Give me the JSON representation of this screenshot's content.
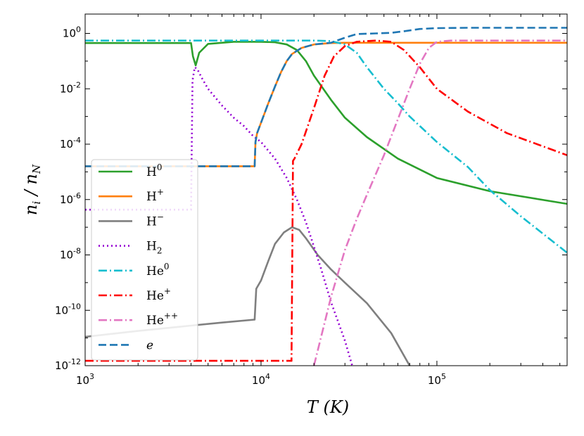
{
  "chart_data": {
    "type": "line",
    "title": "",
    "xlabel": "T (K)",
    "ylabel": "n_i / n_N",
    "xscale": "log",
    "yscale": "log",
    "xlim": [
      1000,
      550000
    ],
    "ylim": [
      1e-12,
      5
    ],
    "grid": false,
    "legend_position": "lower-left",
    "x_ticks": [
      {
        "value": 1000,
        "base": "10",
        "exp": "3"
      },
      {
        "value": 10000,
        "base": "10",
        "exp": "4"
      },
      {
        "value": 100000,
        "base": "10",
        "exp": "5"
      }
    ],
    "y_ticks": [
      {
        "value": 1,
        "base": "10",
        "exp": "0"
      },
      {
        "value": 0.01,
        "base": "10",
        "exp": "-2"
      },
      {
        "value": 0.0001,
        "base": "10",
        "exp": "-4"
      },
      {
        "value": 1e-06,
        "base": "10",
        "exp": "-6"
      },
      {
        "value": 1e-08,
        "base": "10",
        "exp": "-8"
      },
      {
        "value": 1e-10,
        "base": "10",
        "exp": "-10"
      },
      {
        "value": 1e-12,
        "base": "10",
        "exp": "-12"
      }
    ],
    "series": [
      {
        "id": "H0",
        "legend_base": "H",
        "legend_sup": "0",
        "color": "#2ca02c",
        "dash": "solid",
        "points": [
          [
            1000,
            0.45
          ],
          [
            4000,
            0.45
          ],
          [
            4100,
            0.15
          ],
          [
            4250,
            0.07
          ],
          [
            4450,
            0.2
          ],
          [
            5000,
            0.42
          ],
          [
            7000,
            0.5
          ],
          [
            10000,
            0.5
          ],
          [
            12000,
            0.48
          ],
          [
            14000,
            0.4
          ],
          [
            16000,
            0.25
          ],
          [
            18000,
            0.1
          ],
          [
            20000,
            0.03
          ],
          [
            25000,
            0.004
          ],
          [
            30000,
            0.0009
          ],
          [
            40000,
            0.00018
          ],
          [
            60000,
            3e-05
          ],
          [
            100000,
            6e-06
          ],
          [
            200000,
            2e-06
          ],
          [
            550000,
            7e-07
          ]
        ]
      },
      {
        "id": "Hplus",
        "legend_base": "H",
        "legend_sup": "+",
        "color": "#ff7f0e",
        "dash": "solid",
        "points": [
          [
            1000,
            1.6e-05
          ],
          [
            9200,
            1.6e-05
          ],
          [
            9300,
            0.00012
          ],
          [
            9500,
            0.00025
          ],
          [
            10000,
            0.0006
          ],
          [
            11000,
            0.003
          ],
          [
            12000,
            0.012
          ],
          [
            13000,
            0.04
          ],
          [
            14000,
            0.1
          ],
          [
            15000,
            0.18
          ],
          [
            17000,
            0.3
          ],
          [
            20000,
            0.4
          ],
          [
            25000,
            0.45
          ],
          [
            30000,
            0.46
          ],
          [
            550000,
            0.46
          ]
        ]
      },
      {
        "id": "Hminus",
        "legend_base": "H",
        "legend_sup": "−",
        "color": "#7f7f7f",
        "dash": "solid",
        "points": [
          [
            1000,
            1.1e-11
          ],
          [
            2000,
            1.8e-11
          ],
          [
            4000,
            2.8e-11
          ],
          [
            6000,
            3.6e-11
          ],
          [
            9200,
            4.6e-11
          ],
          [
            9400,
            6e-10
          ],
          [
            10000,
            1.2e-09
          ],
          [
            11000,
            6e-09
          ],
          [
            12000,
            2.5e-08
          ],
          [
            13500,
            6.5e-08
          ],
          [
            15000,
            1e-07
          ],
          [
            16500,
            8e-08
          ],
          [
            18000,
            4e-08
          ],
          [
            21000,
            1e-08
          ],
          [
            25000,
            3e-09
          ],
          [
            30000,
            1e-09
          ],
          [
            40000,
            1.8e-10
          ],
          [
            55000,
            1.5e-11
          ],
          [
            70000,
            1e-12
          ]
        ]
      },
      {
        "id": "H2",
        "legend_base": "H",
        "legend_sub": "2",
        "color": "#9400d3",
        "dash": "dotted",
        "points": [
          [
            1000,
            4.3e-07
          ],
          [
            4000,
            4.3e-07
          ],
          [
            4080,
            0.02
          ],
          [
            4200,
            0.06
          ],
          [
            4350,
            0.05
          ],
          [
            4600,
            0.025
          ],
          [
            5000,
            0.01
          ],
          [
            6000,
            0.0025
          ],
          [
            7000,
            0.0009
          ],
          [
            8000,
            0.00045
          ],
          [
            9000,
            0.0002
          ],
          [
            10000,
            0.00012
          ],
          [
            12000,
            3e-05
          ],
          [
            14000,
            6e-06
          ],
          [
            16000,
            1e-06
          ],
          [
            18000,
            1.5e-07
          ],
          [
            20000,
            2e-08
          ],
          [
            22000,
            3e-09
          ],
          [
            25000,
            2e-10
          ],
          [
            30000,
            8e-12
          ],
          [
            33000,
            1e-12
          ]
        ]
      },
      {
        "id": "He0",
        "legend_base": "He",
        "legend_sup": "0",
        "color": "#17becf",
        "dash": "dashdot",
        "points": [
          [
            1000,
            0.55
          ],
          [
            20000,
            0.55
          ],
          [
            25000,
            0.53
          ],
          [
            30000,
            0.4
          ],
          [
            35000,
            0.2
          ],
          [
            40000,
            0.06
          ],
          [
            50000,
            0.01
          ],
          [
            60000,
            0.003
          ],
          [
            70000,
            0.001
          ],
          [
            100000,
            0.00012
          ],
          [
            150000,
            1.5e-05
          ],
          [
            200000,
            2.2e-06
          ],
          [
            300000,
            2.5e-07
          ],
          [
            550000,
            1.2e-08
          ]
        ]
      },
      {
        "id": "Heplus",
        "legend_base": "He",
        "legend_sup": "+",
        "color": "#ff0000",
        "dash": "dashdot",
        "points": [
          [
            1000,
            1.5e-12
          ],
          [
            14900,
            1.5e-12
          ],
          [
            15200,
            2.5e-05
          ],
          [
            15500,
            3e-05
          ],
          [
            17000,
            0.0001
          ],
          [
            20000,
            0.002
          ],
          [
            23000,
            0.03
          ],
          [
            26000,
            0.15
          ],
          [
            30000,
            0.35
          ],
          [
            35000,
            0.5
          ],
          [
            45000,
            0.55
          ],
          [
            55000,
            0.5
          ],
          [
            65000,
            0.25
          ],
          [
            80000,
            0.06
          ],
          [
            100000,
            0.01
          ],
          [
            150000,
            0.0015
          ],
          [
            250000,
            0.00025
          ],
          [
            550000,
            4e-05
          ]
        ]
      },
      {
        "id": "Heplusplus",
        "legend_base": "He",
        "legend_sup": "++",
        "color": "#e377c2",
        "dash": "dashdot",
        "points": [
          [
            20000,
            1e-12
          ],
          [
            25000,
            3e-10
          ],
          [
            30000,
            1.5e-08
          ],
          [
            35000,
            2e-07
          ],
          [
            40000,
            1.5e-06
          ],
          [
            50000,
            4e-05
          ],
          [
            60000,
            0.0008
          ],
          [
            70000,
            0.01
          ],
          [
            80000,
            0.08
          ],
          [
            90000,
            0.3
          ],
          [
            100000,
            0.5
          ],
          [
            120000,
            0.55
          ],
          [
            550000,
            0.55
          ]
        ]
      },
      {
        "id": "e",
        "legend_base": "e",
        "legend_italic": true,
        "color": "#1f77b4",
        "dash": "dashed",
        "points": [
          [
            1000,
            1.6e-05
          ],
          [
            9200,
            1.6e-05
          ],
          [
            9300,
            0.00012
          ],
          [
            9500,
            0.00025
          ],
          [
            10000,
            0.0006
          ],
          [
            11000,
            0.003
          ],
          [
            12000,
            0.012
          ],
          [
            13000,
            0.04
          ],
          [
            14000,
            0.1
          ],
          [
            15000,
            0.18
          ],
          [
            17000,
            0.3
          ],
          [
            20000,
            0.4
          ],
          [
            25000,
            0.46
          ],
          [
            30000,
            0.7
          ],
          [
            35000,
            0.95
          ],
          [
            45000,
            1.0
          ],
          [
            55000,
            1.05
          ],
          [
            65000,
            1.2
          ],
          [
            80000,
            1.45
          ],
          [
            100000,
            1.55
          ],
          [
            150000,
            1.6
          ],
          [
            550000,
            1.6
          ]
        ]
      }
    ]
  }
}
